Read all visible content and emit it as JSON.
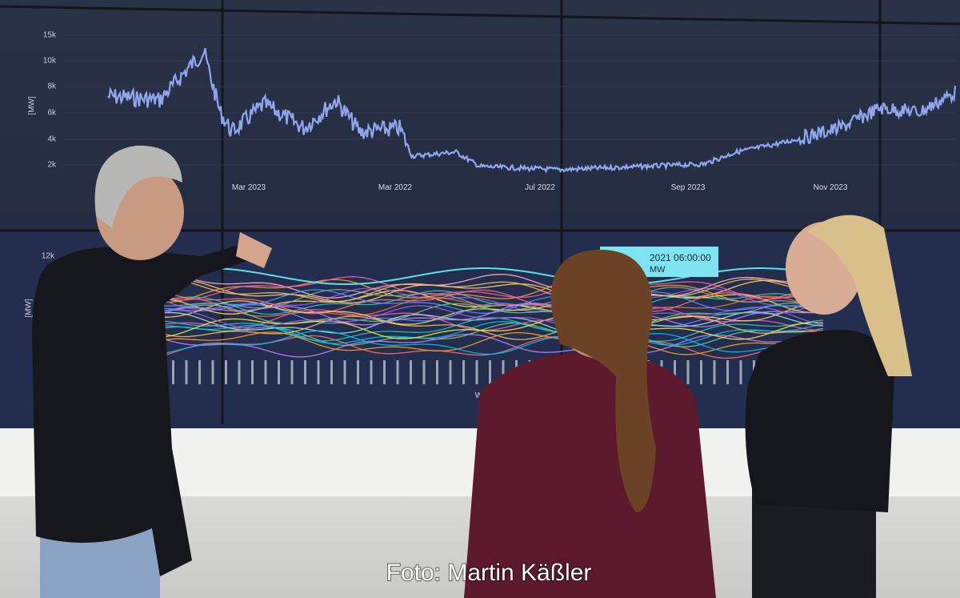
{
  "screen": {
    "top_chart": {
      "y_axis_label": "[MW]",
      "yticks": [
        "15k",
        "10k",
        "8k",
        "6k",
        "4k",
        "2k"
      ],
      "xticks": [
        "Mar 2023",
        "Mar 2022",
        "Jul 2022",
        "Sep 2023",
        "Nov 2023"
      ]
    },
    "bottom_chart": {
      "y_axis_label": "[MW]",
      "ytick": "12k",
      "x_axis_label": "Wochen",
      "tooltip": {
        "time": "2021 06:00:00",
        "unit": "MW"
      }
    }
  },
  "caption": "Foto: Martin Käßler"
}
